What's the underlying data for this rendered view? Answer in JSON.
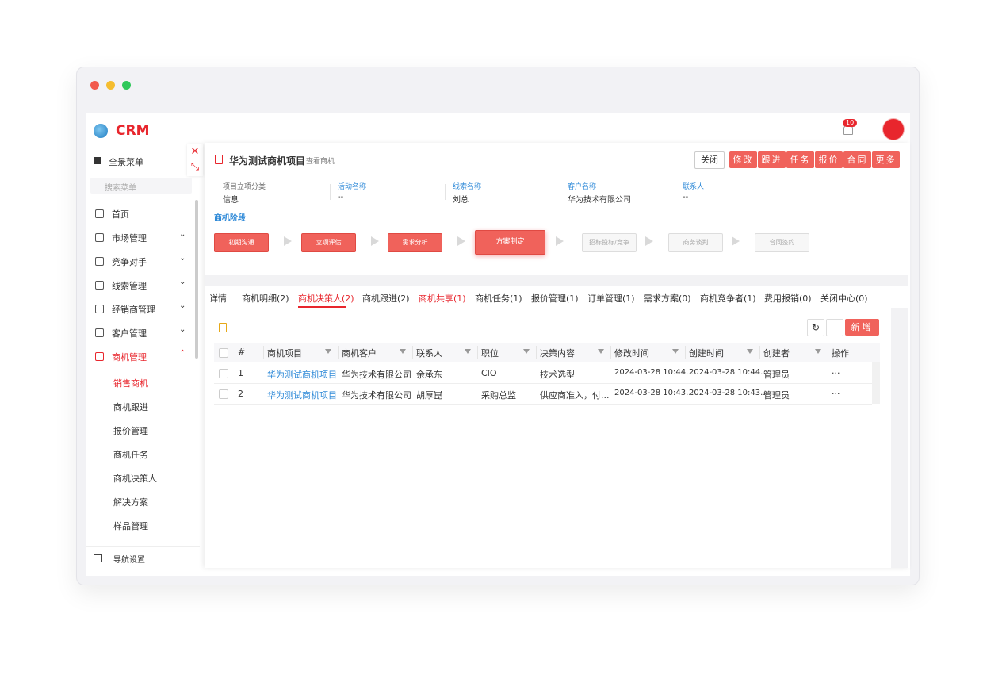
{
  "header": {
    "logo": "CRM",
    "badge": "10"
  },
  "sidebar": {
    "menu_title": "全景菜单",
    "search": "搜索菜单",
    "items": [
      "首页",
      "市场管理",
      "竞争对手",
      "线索管理",
      "经销商管理",
      "客户管理",
      "商机管理"
    ],
    "sub_items": [
      "销售商机",
      "商机跟进",
      "报价管理",
      "商机任务",
      "商机决策人",
      "解决方案",
      "样品管理"
    ],
    "footer": "导航设置"
  },
  "detail": {
    "title": "华为测试商机项目",
    "subtitle": "查看商机",
    "close": "关闭",
    "actions": [
      "修改",
      "跟进",
      "任务",
      "报价",
      "合同",
      "更多"
    ],
    "fields": [
      {
        "label": "项目立项分类",
        "value": "信息"
      },
      {
        "label": "活动名称",
        "value": "--"
      },
      {
        "label": "线索名称",
        "value": "刘总"
      },
      {
        "label": "客户名称",
        "value": "华为技术有限公司"
      },
      {
        "label": "联系人",
        "value": "--"
      }
    ],
    "stage_title": "商机阶段",
    "stages": [
      "初期沟通",
      "立项评估",
      "需求分析",
      "方案制定",
      "招标投标/竞争",
      "商务谈判",
      "合同签约"
    ],
    "tabs": [
      "详情",
      "商机明细(2)",
      "商机决策人(2)",
      "商机跟进(2)",
      "商机共享(1)",
      "商机任务(1)",
      "报价管理(1)",
      "订单管理(1)",
      "需求方案(0)",
      "商机竞争者(1)",
      "费用报销(0)",
      "关闭中心(0)"
    ],
    "add_button": "新增",
    "table": {
      "columns": [
        "#",
        "商机项目",
        "商机客户",
        "联系人",
        "职位",
        "决策内容",
        "修改时间",
        "创建时间",
        "创建者",
        "操作"
      ],
      "rows": [
        [
          "1",
          "华为测试商机项目",
          "华为技术有限公司",
          "余承东",
          "CIO",
          "技术选型",
          "2024-03-28 10:44...",
          "2024-03-28 10:44...",
          "管理员",
          "···"
        ],
        [
          "2",
          "华为测试商机项目",
          "华为技术有限公司",
          "胡厚崑",
          "采购总监",
          "供应商准入，付...",
          "2024-03-28 10:43...",
          "2024-03-28 10:43...",
          "管理员",
          "···"
        ]
      ]
    }
  }
}
